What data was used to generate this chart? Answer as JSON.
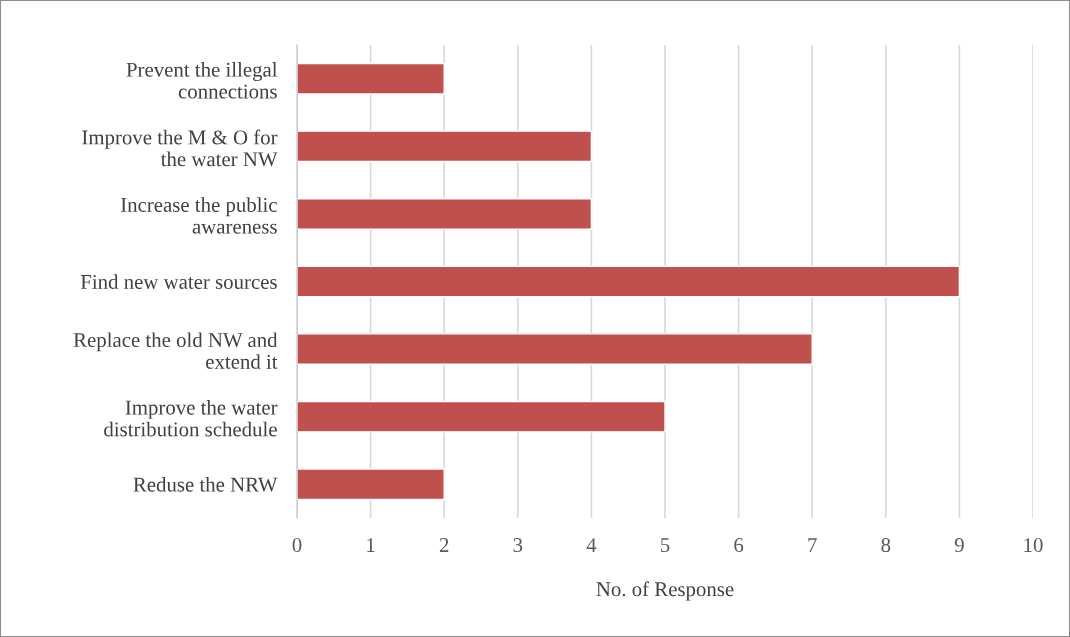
{
  "chart_data": {
    "type": "bar",
    "orientation": "horizontal",
    "xlabel": "No. of Response",
    "categories": [
      "Prevent the illegal\nconnections",
      "Improve the M & O for\nthe water NW",
      "Increase the public\nawareness",
      "Find new water sources",
      "Replace the old NW and\nextend it",
      "Improve the water\ndistribution schedule",
      "Reduse the NRW"
    ],
    "values": [
      2,
      4,
      4,
      9,
      7,
      5,
      2
    ],
    "color": "#c0504d",
    "xlim": [
      0,
      10
    ],
    "xticks": [
      0,
      1,
      2,
      3,
      4,
      5,
      6,
      7,
      8,
      9,
      10
    ],
    "grid": "x"
  }
}
